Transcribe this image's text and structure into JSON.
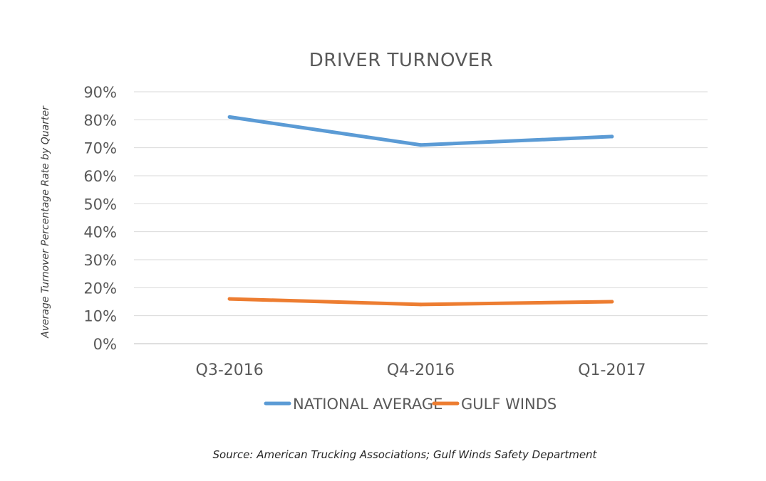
{
  "chart_data": {
    "type": "line",
    "title": "DRIVER TURNOVER",
    "xlabel": "",
    "ylabel": "Average Turnover Percentage Rate by Quarter",
    "categories": [
      "Q3-2016",
      "Q4-2016",
      "Q1-2017"
    ],
    "yticks": [
      "0%",
      "10%",
      "20%",
      "30%",
      "40%",
      "50%",
      "60%",
      "70%",
      "80%",
      "90%"
    ],
    "ylim": [
      0,
      90
    ],
    "grid": true,
    "legend_position": "bottom",
    "series": [
      {
        "name": "NATIONAL AVERAGE",
        "values": [
          81,
          71,
          74
        ],
        "color": "#5B9BD5"
      },
      {
        "name": "GULF WINDS",
        "values": [
          16,
          14,
          15
        ],
        "color": "#ED7D31"
      }
    ],
    "source": "Source: American Trucking Associations; Gulf Winds Safety Department"
  }
}
